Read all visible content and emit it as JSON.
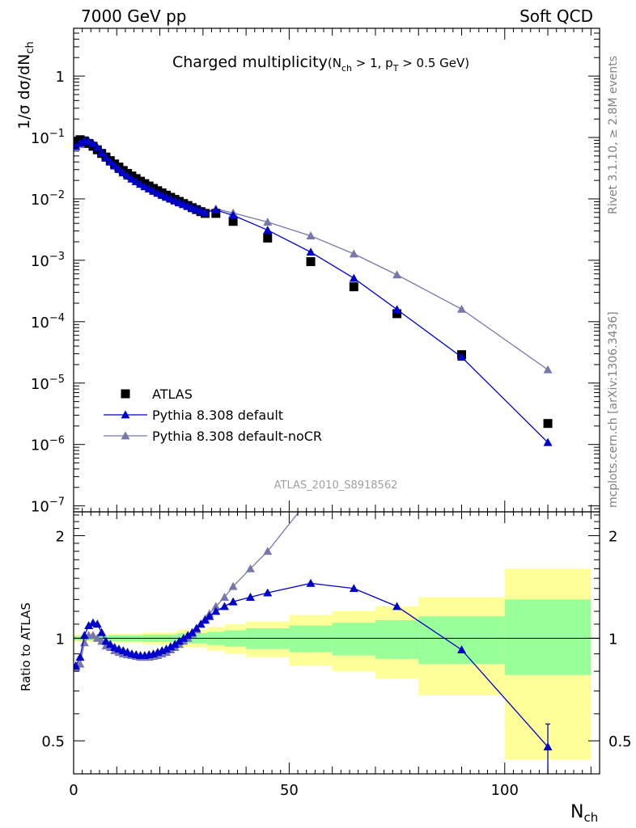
{
  "header": {
    "left": "7000 GeV pp",
    "right": "Soft QCD"
  },
  "side": {
    "rivet": "Rivet 3.1.10, ≥ 2.8M events",
    "mcplots": "mcplots.cern.ch [arXiv:1306.3436]"
  },
  "colors": {
    "atlas": "#000000",
    "pythia_default": "#0000cc",
    "pythia_nocr": "#7777aa",
    "band_inner": "#99ff99",
    "band_outer": "#ffff99"
  },
  "chart_data": [
    {
      "type": "scatter",
      "title": "Charged multiplicity",
      "title_suffix": {
        "open": "(N",
        "sub1": "ch",
        "mid": " > 1, p",
        "sub2": "T",
        "close": " > 0.5 GeV)"
      },
      "ylabel": {
        "main": "1/σ dσ/dN",
        "sub": "ch"
      },
      "yscale": "log",
      "ylim": [
        8e-08,
        6
      ],
      "xlim": [
        0,
        122
      ],
      "yticks": [
        {
          "v": 1e-07,
          "base": "10",
          "exp": "−7"
        },
        {
          "v": 1e-06,
          "base": "10",
          "exp": "−6"
        },
        {
          "v": 1e-05,
          "base": "10",
          "exp": "−5"
        },
        {
          "v": 0.0001,
          "base": "10",
          "exp": "−4"
        },
        {
          "v": 0.001,
          "base": "10",
          "exp": "−3"
        },
        {
          "v": 0.01,
          "base": "10",
          "exp": "−2"
        },
        {
          "v": 0.1,
          "base": "10",
          "exp": "−1"
        },
        {
          "v": 1,
          "base": "1",
          "exp": ""
        }
      ],
      "legend_position": "lower-left",
      "watermark": "ATLAS_2010_S8918562",
      "series": [
        {
          "name": "ATLAS",
          "marker": "square",
          "x": [
            0.5,
            1.5,
            2.5,
            3.5,
            4.5,
            5.5,
            6.5,
            7.5,
            8.5,
            9.5,
            10.5,
            11.5,
            12.5,
            13.5,
            14.5,
            15.5,
            16.5,
            17.5,
            18.5,
            19.5,
            20.5,
            21.5,
            22.5,
            23.5,
            24.5,
            25.5,
            26.5,
            27.5,
            28.5,
            29.5,
            30.5,
            33,
            37,
            45,
            55,
            65,
            75,
            90,
            110
          ],
          "y": [
            0.087,
            0.092,
            0.088,
            0.08,
            0.072,
            0.063,
            0.055,
            0.048,
            0.042,
            0.037,
            0.033,
            0.029,
            0.026,
            0.0236,
            0.0214,
            0.0194,
            0.0177,
            0.0162,
            0.0148,
            0.0136,
            0.0125,
            0.0115,
            0.0106,
            0.0098,
            0.0091,
            0.0084,
            0.0078,
            0.0072,
            0.0067,
            0.0062,
            0.0058,
            0.0058,
            0.0043,
            0.0023,
            0.00095,
            0.00037,
            0.000135,
            2.9e-05,
            2.2e-06
          ]
        },
        {
          "name": "Pythia 8.308 default",
          "marker": "triangle",
          "x": [
            0.5,
            1.5,
            2.5,
            3.5,
            4.5,
            5.5,
            6.5,
            7.5,
            8.5,
            9.5,
            10.5,
            11.5,
            12.5,
            13.5,
            14.5,
            15.5,
            16.5,
            17.5,
            18.5,
            19.5,
            20.5,
            21.5,
            22.5,
            23.5,
            24.5,
            25.5,
            26.5,
            27.5,
            28.5,
            29.5,
            30.5,
            33,
            37,
            45,
            55,
            65,
            75,
            90,
            110
          ],
          "y": [
            0.072,
            0.081,
            0.09,
            0.087,
            0.08,
            0.069,
            0.057,
            0.047,
            0.0403,
            0.0348,
            0.0304,
            0.0267,
            0.0236,
            0.0212,
            0.0192,
            0.0174,
            0.0159,
            0.0146,
            0.0134,
            0.0124,
            0.0115,
            0.0107,
            0.01,
            0.0093,
            0.0087,
            0.0082,
            0.0077,
            0.0072,
            0.0068,
            0.0064,
            0.006,
            0.0066,
            0.0054,
            0.0031,
            0.00136,
            0.00051,
            0.000158,
            2.65e-05,
            1.08e-06
          ]
        },
        {
          "name": "Pythia 8.308 default-noCR",
          "marker": "triangle",
          "x": [
            0.5,
            1.5,
            2.5,
            3.5,
            4.5,
            5.5,
            6.5,
            7.5,
            8.5,
            9.5,
            10.5,
            11.5,
            12.5,
            13.5,
            14.5,
            15.5,
            16.5,
            17.5,
            18.5,
            19.5,
            20.5,
            21.5,
            22.5,
            23.5,
            24.5,
            25.5,
            26.5,
            27.5,
            28.5,
            29.5,
            30.5,
            33,
            37,
            45,
            55,
            65,
            75,
            90,
            110
          ],
          "y": [
            0.071,
            0.077,
            0.085,
            0.081,
            0.074,
            0.064,
            0.054,
            0.046,
            0.0395,
            0.0343,
            0.0301,
            0.0265,
            0.0235,
            0.0211,
            0.0191,
            0.0173,
            0.0158,
            0.0145,
            0.0133,
            0.0123,
            0.0114,
            0.0106,
            0.0099,
            0.0092,
            0.0086,
            0.0081,
            0.0076,
            0.0072,
            0.0068,
            0.0064,
            0.0062,
            0.0069,
            0.0059,
            0.0042,
            0.0025,
            0.00127,
            0.00058,
            0.00016,
            1.65e-05
          ]
        }
      ]
    },
    {
      "type": "line",
      "ylabel": "Ratio to ATLAS",
      "xlabel": {
        "main": "N",
        "sub": "ch"
      },
      "xlim": [
        0,
        122
      ],
      "ylim": [
        0.4,
        2.35
      ],
      "yscale": "log",
      "reference_line": 1,
      "xticks": [
        {
          "v": 0,
          "label": "0"
        },
        {
          "v": 50,
          "label": "50"
        },
        {
          "v": 100,
          "label": "100"
        }
      ],
      "yticks": [
        {
          "v": 0.5,
          "label": "0.5"
        },
        {
          "v": 1,
          "label": "1"
        },
        {
          "v": 2,
          "label": "2"
        }
      ],
      "bands": [
        {
          "x0": 0,
          "x1": 2,
          "in_lo": 0.985,
          "in_hi": 1.015,
          "out_lo": 0.975,
          "out_hi": 1.025
        },
        {
          "x0": 2,
          "x1": 8,
          "in_lo": 0.985,
          "in_hi": 1.015,
          "out_lo": 0.975,
          "out_hi": 1.025
        },
        {
          "x0": 8,
          "x1": 16,
          "in_lo": 0.98,
          "in_hi": 1.02,
          "out_lo": 0.97,
          "out_hi": 1.03
        },
        {
          "x0": 16,
          "x1": 24,
          "in_lo": 0.975,
          "in_hi": 1.025,
          "out_lo": 0.96,
          "out_hi": 1.04
        },
        {
          "x0": 24,
          "x1": 31,
          "in_lo": 0.965,
          "in_hi": 1.035,
          "out_lo": 0.94,
          "out_hi": 1.06
        },
        {
          "x0": 31,
          "x1": 35,
          "in_lo": 0.955,
          "in_hi": 1.045,
          "out_lo": 0.92,
          "out_hi": 1.08
        },
        {
          "x0": 35,
          "x1": 40,
          "in_lo": 0.945,
          "in_hi": 1.055,
          "out_lo": 0.9,
          "out_hi": 1.1
        },
        {
          "x0": 40,
          "x1": 50,
          "in_lo": 0.93,
          "in_hi": 1.07,
          "out_lo": 0.88,
          "out_hi": 1.12
        },
        {
          "x0": 50,
          "x1": 60,
          "in_lo": 0.91,
          "in_hi": 1.09,
          "out_lo": 0.83,
          "out_hi": 1.17
        },
        {
          "x0": 60,
          "x1": 70,
          "in_lo": 0.89,
          "in_hi": 1.11,
          "out_lo": 0.8,
          "out_hi": 1.2
        },
        {
          "x0": 70,
          "x1": 80,
          "in_lo": 0.87,
          "in_hi": 1.13,
          "out_lo": 0.76,
          "out_hi": 1.24
        },
        {
          "x0": 80,
          "x1": 100,
          "in_lo": 0.84,
          "in_hi": 1.16,
          "out_lo": 0.68,
          "out_hi": 1.32
        },
        {
          "x0": 100,
          "x1": 120,
          "in_lo": 0.78,
          "in_hi": 1.3,
          "out_lo": 0.44,
          "out_hi": 1.6
        }
      ],
      "series": [
        {
          "name": "Pythia 8.308 default",
          "x": [
            0.5,
            1.5,
            2.5,
            3.5,
            4.5,
            5.5,
            6.5,
            7.5,
            8.5,
            9.5,
            10.5,
            11.5,
            12.5,
            13.5,
            14.5,
            15.5,
            16.5,
            17.5,
            18.5,
            19.5,
            20.5,
            21.5,
            22.5,
            23.5,
            24.5,
            25.5,
            26.5,
            27.5,
            28.5,
            29.5,
            30.5,
            31.5,
            33,
            35,
            37,
            41,
            45,
            55,
            65,
            75,
            90,
            110
          ],
          "y": [
            0.83,
            0.88,
            1.02,
            1.09,
            1.11,
            1.1,
            1.04,
            0.98,
            0.96,
            0.94,
            0.93,
            0.92,
            0.91,
            0.9,
            0.895,
            0.89,
            0.89,
            0.895,
            0.9,
            0.91,
            0.92,
            0.93,
            0.945,
            0.96,
            0.98,
            1.0,
            1.02,
            1.04,
            1.07,
            1.1,
            1.13,
            1.16,
            1.2,
            1.24,
            1.28,
            1.32,
            1.36,
            1.45,
            1.4,
            1.24,
            0.925,
            0.48
          ],
          "err": {
            "index": 41,
            "lo": 0.38,
            "hi": 0.56
          }
        },
        {
          "name": "Pythia 8.308 default-noCR",
          "x": [
            0.5,
            1.5,
            2.5,
            3.5,
            4.5,
            5.5,
            6.5,
            7.5,
            8.5,
            9.5,
            10.5,
            11.5,
            12.5,
            13.5,
            14.5,
            15.5,
            16.5,
            17.5,
            18.5,
            19.5,
            20.5,
            21.5,
            22.5,
            23.5,
            24.5,
            25.5,
            26.5,
            27.5,
            28.5,
            29.5,
            30.5,
            31.5,
            33,
            35,
            37,
            41,
            45,
            55
          ],
          "y": [
            0.82,
            0.84,
            0.97,
            1.02,
            1.02,
            1.0,
            0.98,
            0.95,
            0.94,
            0.92,
            0.91,
            0.9,
            0.895,
            0.89,
            0.885,
            0.88,
            0.88,
            0.88,
            0.885,
            0.89,
            0.9,
            0.91,
            0.925,
            0.94,
            0.96,
            0.98,
            1.0,
            1.03,
            1.06,
            1.1,
            1.14,
            1.18,
            1.24,
            1.32,
            1.42,
            1.6,
            1.8,
            2.6
          ]
        }
      ]
    }
  ]
}
